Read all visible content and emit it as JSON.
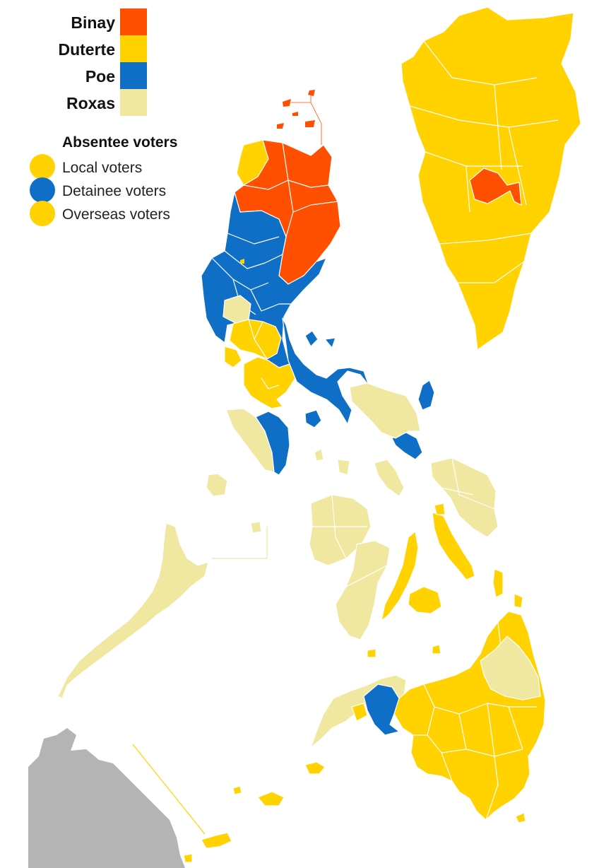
{
  "legend": {
    "candidates": [
      {
        "name": "Binay",
        "color": "#FF4F00"
      },
      {
        "name": "Duterte",
        "color": "#FFD200"
      },
      {
        "name": "Poe",
        "color": "#0F6FC6"
      },
      {
        "name": "Roxas",
        "color": "#F0E8A0"
      }
    ],
    "absentee_heading": "Absentee voters",
    "absentee": [
      {
        "label": "Local voters",
        "color": "#FFD200"
      },
      {
        "label": "Detainee voters",
        "color": "#0F6FC6"
      },
      {
        "label": "Overseas voters",
        "color": "#FFD200"
      }
    ]
  },
  "colors": {
    "binay": "#FF4F00",
    "duterte": "#FFD200",
    "poe": "#0F6FC6",
    "roxas": "#F0E8A0",
    "neighbor": "#B4B4B4",
    "background": "#FFFFFF"
  }
}
